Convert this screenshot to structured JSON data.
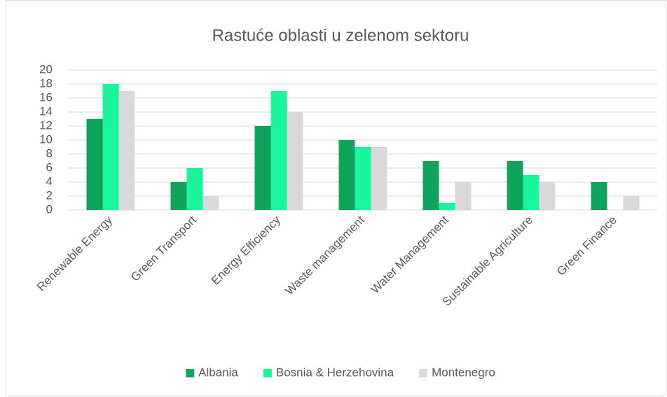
{
  "chart_data": {
    "type": "bar",
    "title": "Rastuće oblasti u zelenom sektoru",
    "categories": [
      "Renewable Energy",
      "Green Transport",
      "Energy Efficiency",
      "Waste management",
      "Water Management",
      "Sustainable Agriculture",
      "Green Finance"
    ],
    "series": [
      {
        "name": "Albania",
        "color": "#10a35c",
        "values": [
          13,
          4,
          12,
          10,
          7,
          7,
          4
        ]
      },
      {
        "name": "Bosnia & Herzehovina",
        "color": "#19f59a",
        "values": [
          18,
          6,
          17,
          9,
          1,
          5,
          0
        ]
      },
      {
        "name": "Montenegro",
        "color": "#d9d9d9",
        "values": [
          17,
          2,
          14,
          9,
          4,
          4,
          2
        ]
      }
    ],
    "ylim": [
      0,
      20
    ],
    "yticks": [
      0,
      2,
      4,
      6,
      8,
      10,
      12,
      14,
      16,
      18,
      20
    ],
    "grid": true,
    "legend": "bottom"
  }
}
